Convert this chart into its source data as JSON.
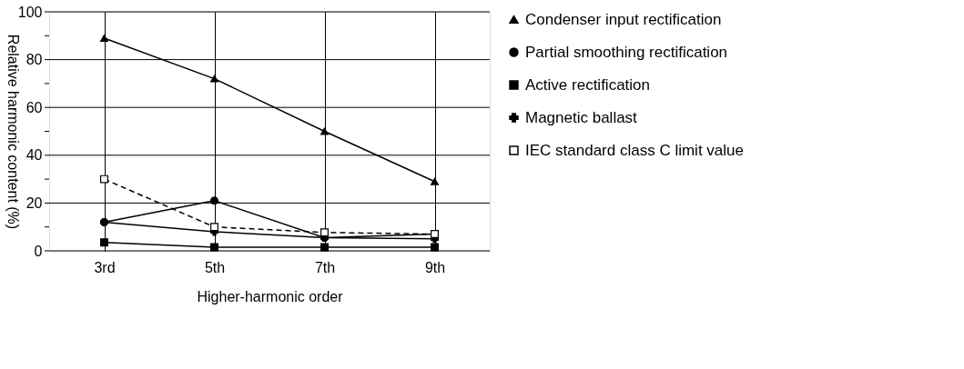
{
  "chart_data": {
    "type": "line",
    "xlabel": "Higher-harmonic order",
    "ylabel": "Relative harmonic content (%)",
    "categories": [
      "3rd",
      "5th",
      "7th",
      "9th"
    ],
    "series": [
      {
        "name": "Condenser input rectification",
        "color": "#000000",
        "marker": "triangle",
        "line_style": "solid",
        "values": [
          89,
          72,
          50,
          29
        ]
      },
      {
        "name": "Partial smoothing rectification",
        "color": "#000000",
        "marker": "circle",
        "line_style": "solid",
        "values": [
          12,
          21,
          5.5,
          7
        ]
      },
      {
        "name": "Active rectification",
        "color": "#000000",
        "marker": "square",
        "line_style": "solid",
        "values": [
          3.5,
          1.5,
          1.5,
          1.5
        ]
      },
      {
        "name": "Magnetic ballast",
        "color": "#000000",
        "marker": "cross",
        "line_style": "solid",
        "values": [
          12,
          8,
          5.5,
          5
        ]
      },
      {
        "name": "IEC standard class C limit value",
        "color": "#000000",
        "marker": "square",
        "line_style": "dashed",
        "values": [
          30,
          10,
          7.7,
          7
        ]
      }
    ],
    "ylim": [
      0,
      100
    ],
    "yticks": [
      0,
      {
        "value": 10,
        "label": null
      },
      20,
      {
        "value": 30,
        "label": null
      },
      40,
      {
        "value": 50,
        "label": null
      },
      60,
      {
        "value": 70,
        "label": null
      },
      80,
      {
        "value": 90,
        "label": null
      },
      100
    ],
    "grid": true,
    "legend": "right"
  }
}
